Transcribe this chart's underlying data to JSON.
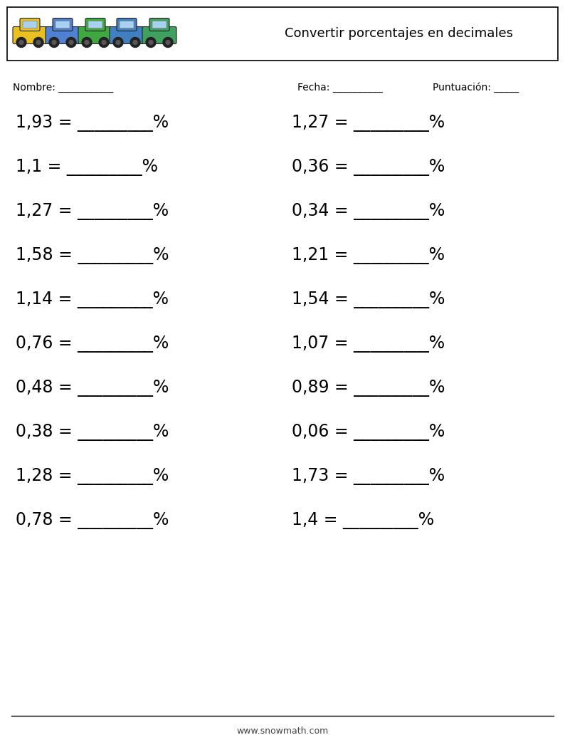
{
  "title": "Convertir porcentajes en decimales",
  "header_box_color": "#000000",
  "background_color": "#ffffff",
  "text_color": "#000000",
  "nombre_label": "Nombre: ___________",
  "fecha_label": "Fecha: __________",
  "puntuacion_label": "Puntuación: _____",
  "left_problems": [
    "1,93 = _________%",
    "1,1 = _________%",
    "1,27 = _________%",
    "1,58 = _________%",
    "1,14 = _________%",
    "0,76 = _________%",
    "0,48 = _________%",
    "0,38 = _________%",
    "1,28 = _________%",
    "0,78 = _________%"
  ],
  "right_problems": [
    "1,27 = _________%",
    "0,36 = _________%",
    "0,34 = _________%",
    "1,21 = _________%",
    "1,54 = _________%",
    "1,07 = _________%",
    "0,89 = _________%",
    "0,06 = _________%",
    "1,73 = _________%",
    "1,4 = _________%"
  ],
  "footer_text": "www.snowmath.com",
  "car_colors": [
    "#e8c020",
    "#5080d0",
    "#40a840",
    "#4080c0",
    "#40a060"
  ],
  "font_size_problems": 17,
  "font_size_header": 13,
  "font_size_labels": 10,
  "font_size_footer": 9
}
